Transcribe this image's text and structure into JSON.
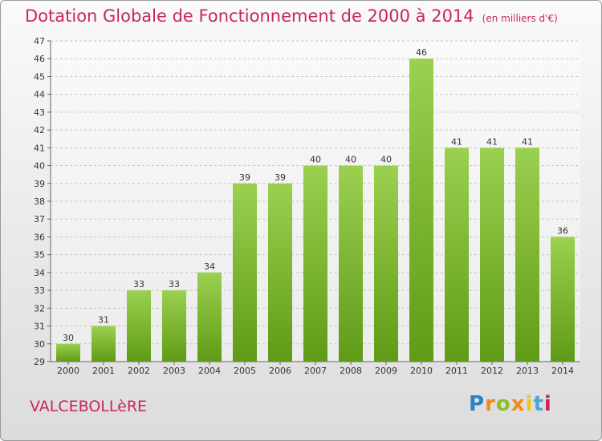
{
  "header": {
    "title": "Dotation Globale de Fonctionnement de 2000 à 2014",
    "unit": "(en milliers d'€)"
  },
  "footer": {
    "commune": "VALCEBOLLèRE",
    "logo_text": "Proxiti"
  },
  "colors": {
    "title": "#c8255f",
    "bar_top": "#9bd050",
    "bar_bottom": "#5f9b16"
  },
  "chart_data": {
    "type": "bar",
    "title": "Dotation Globale de Fonctionnement de 2000 à 2014",
    "subtitle": "(en milliers d'€)",
    "xlabel": "",
    "ylabel": "",
    "categories": [
      "2000",
      "2001",
      "2002",
      "2003",
      "2004",
      "2005",
      "2006",
      "2007",
      "2008",
      "2009",
      "2010",
      "2011",
      "2012",
      "2013",
      "2014"
    ],
    "values": [
      30,
      31,
      33,
      33,
      34,
      39,
      39,
      40,
      40,
      40,
      46,
      41,
      41,
      41,
      36
    ],
    "ylim": [
      29,
      47
    ],
    "yticks": [
      29,
      30,
      31,
      32,
      33,
      34,
      35,
      36,
      37,
      38,
      39,
      40,
      41,
      42,
      43,
      44,
      45,
      46,
      47
    ],
    "grid": true,
    "data_labels": true
  }
}
